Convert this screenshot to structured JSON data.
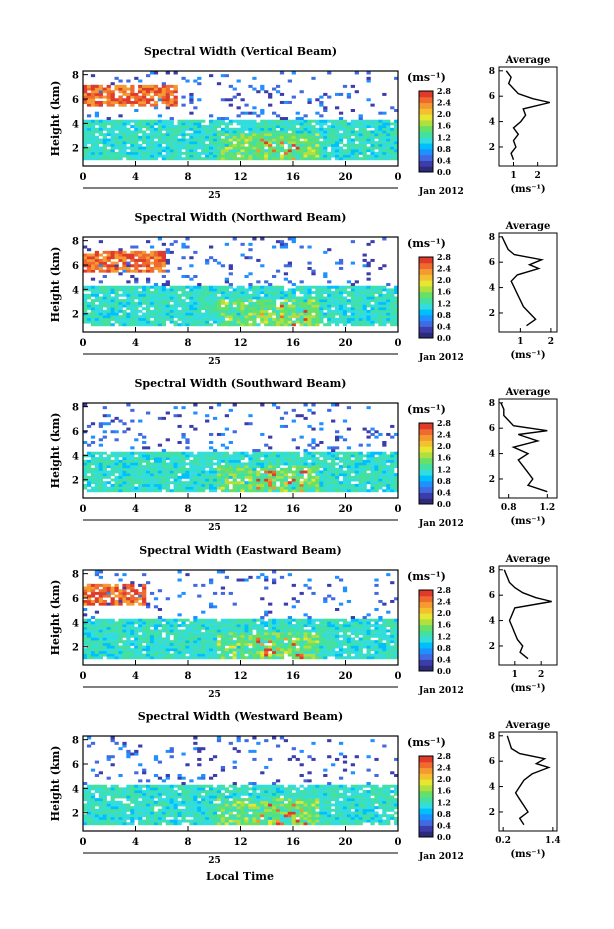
{
  "figure": {
    "xlabel": "Local Time",
    "date_label": "Jan 2012",
    "day_label": "25",
    "cbar_unit": "(ms⁻¹)",
    "avg_title": "Average",
    "avg_xunit": "(ms⁻¹)",
    "colormap": [
      "#2b2b7a",
      "#3c3caa",
      "#4169e1",
      "#1e90ff",
      "#00bfff",
      "#33dddd",
      "#44e0a0",
      "#66e066",
      "#b0e040",
      "#e6e633",
      "#f5c030",
      "#f59a30",
      "#f06a30",
      "#e03a2a"
    ]
  },
  "chart_data": [
    {
      "type": "heatmap",
      "title": "Spectral Width (Vertical Beam)",
      "ylabel": "Height (km)",
      "x_ticks": [
        "0",
        "4",
        "8",
        "12",
        "16",
        "20",
        "0"
      ],
      "y_ticks": [
        "2",
        "4",
        "6",
        "8"
      ],
      "xlim": [
        0,
        24
      ],
      "ylim": [
        0.5,
        8.3
      ],
      "cbar_ticks": [
        "0.0",
        "0.4",
        "0.8",
        "1.2",
        "1.6",
        "2.0",
        "2.4",
        "2.8"
      ],
      "cbar_range": [
        0,
        2.8
      ],
      "avg_xticks": [
        "1",
        "2"
      ],
      "avg_xlim": [
        0.4,
        2.8
      ],
      "avg_profile": {
        "height_km": [
          1.0,
          1.5,
          2.0,
          2.5,
          3.0,
          3.5,
          4.0,
          4.5,
          5.0,
          5.5,
          5.8,
          6.2,
          6.6,
          7.0,
          7.5,
          8.0
        ],
        "width_ms": [
          1.0,
          0.9,
          1.1,
          1.0,
          1.2,
          1.0,
          1.3,
          1.5,
          1.4,
          2.5,
          1.8,
          1.2,
          1.0,
          0.8,
          0.9,
          0.7
        ]
      }
    },
    {
      "type": "heatmap",
      "title": "Spectral Width (Northward Beam)",
      "ylabel": "Height (km)",
      "x_ticks": [
        "0",
        "4",
        "8",
        "12",
        "16",
        "20",
        "0"
      ],
      "y_ticks": [
        "2",
        "4",
        "6",
        "8"
      ],
      "xlim": [
        0,
        24
      ],
      "ylim": [
        0.5,
        8.3
      ],
      "cbar_ticks": [
        "0.0",
        "0.4",
        "0.8",
        "1.2",
        "1.6",
        "2.0",
        "2.4",
        "2.8"
      ],
      "cbar_range": [
        0,
        2.8
      ],
      "avg_xticks": [
        "1",
        "2"
      ],
      "avg_xlim": [
        0.3,
        2.2
      ],
      "avg_profile": {
        "height_km": [
          1.0,
          1.5,
          2.0,
          2.5,
          3.0,
          3.5,
          4.0,
          4.5,
          5.0,
          5.5,
          5.8,
          6.2,
          6.6,
          7.0,
          7.5,
          8.0
        ],
        "width_ms": [
          1.2,
          1.5,
          1.3,
          1.1,
          1.0,
          0.9,
          0.8,
          0.7,
          0.9,
          1.6,
          1.3,
          1.7,
          0.8,
          0.6,
          0.5,
          0.4
        ]
      }
    },
    {
      "type": "heatmap",
      "title": "Spectral Width (Southward Beam)",
      "ylabel": "Height (km)",
      "x_ticks": [
        "0",
        "4",
        "8",
        "12",
        "16",
        "20",
        "0"
      ],
      "y_ticks": [
        "2",
        "4",
        "6",
        "8"
      ],
      "xlim": [
        0,
        24
      ],
      "ylim": [
        0.5,
        8.3
      ],
      "cbar_ticks": [
        "0.0",
        "0.4",
        "0.8",
        "1.2",
        "1.6",
        "2.0",
        "2.4",
        "2.8"
      ],
      "cbar_range": [
        0,
        2.8
      ],
      "avg_xticks": [
        "0.8",
        "1.2"
      ],
      "avg_xlim": [
        0.7,
        1.3
      ],
      "avg_profile": {
        "height_km": [
          1.0,
          1.5,
          2.0,
          2.5,
          3.0,
          3.5,
          4.0,
          4.5,
          5.0,
          5.5,
          5.8,
          6.2,
          6.6,
          7.0,
          7.5,
          8.0
        ],
        "width_ms": [
          1.2,
          1.0,
          1.05,
          1.0,
          0.95,
          0.9,
          1.0,
          0.85,
          1.1,
          0.9,
          1.2,
          0.85,
          0.8,
          0.75,
          0.75,
          0.72
        ]
      }
    },
    {
      "type": "heatmap",
      "title": "Spectral Width (Eastward Beam)",
      "ylabel": "Height (km)",
      "x_ticks": [
        "0",
        "4",
        "8",
        "12",
        "16",
        "20",
        "0"
      ],
      "y_ticks": [
        "2",
        "4",
        "6",
        "8"
      ],
      "xlim": [
        0,
        24
      ],
      "ylim": [
        0.5,
        8.3
      ],
      "cbar_ticks": [
        "0.0",
        "0.4",
        "0.8",
        "1.2",
        "1.6",
        "2.0",
        "2.4",
        "2.8"
      ],
      "cbar_range": [
        0,
        2.8
      ],
      "avg_xticks": [
        "1",
        "2"
      ],
      "avg_xlim": [
        0.4,
        2.6
      ],
      "avg_profile": {
        "height_km": [
          1.0,
          1.5,
          2.0,
          2.5,
          3.0,
          3.5,
          4.0,
          4.5,
          5.0,
          5.5,
          5.8,
          6.2,
          6.6,
          7.0,
          7.5,
          8.0
        ],
        "width_ms": [
          1.5,
          1.2,
          1.3,
          1.1,
          1.0,
          0.9,
          0.8,
          0.9,
          1.0,
          2.4,
          1.8,
          1.3,
          1.0,
          0.8,
          0.7,
          0.6
        ]
      }
    },
    {
      "type": "heatmap",
      "title": "Spectral Width (Westward Beam)",
      "ylabel": "Height (km)",
      "x_ticks": [
        "0",
        "4",
        "8",
        "12",
        "16",
        "20",
        "0"
      ],
      "y_ticks": [
        "2",
        "4",
        "6",
        "8"
      ],
      "xlim": [
        0,
        24
      ],
      "ylim": [
        0.5,
        8.3
      ],
      "cbar_ticks": [
        "0.0",
        "0.4",
        "0.8",
        "1.2",
        "1.6",
        "2.0",
        "2.4",
        "2.8"
      ],
      "cbar_range": [
        0,
        2.8
      ],
      "avg_xticks": [
        "0.2",
        "1.4"
      ],
      "avg_xlim": [
        0.1,
        1.5
      ],
      "avg_profile": {
        "height_km": [
          1.0,
          1.5,
          2.0,
          2.5,
          3.0,
          3.5,
          4.0,
          4.5,
          5.0,
          5.5,
          5.8,
          6.2,
          6.6,
          7.0,
          7.5,
          8.0
        ],
        "width_ms": [
          0.7,
          0.6,
          0.8,
          0.7,
          0.6,
          0.5,
          0.6,
          0.7,
          0.9,
          1.3,
          1.0,
          1.2,
          0.6,
          0.4,
          0.35,
          0.3
        ]
      }
    }
  ]
}
